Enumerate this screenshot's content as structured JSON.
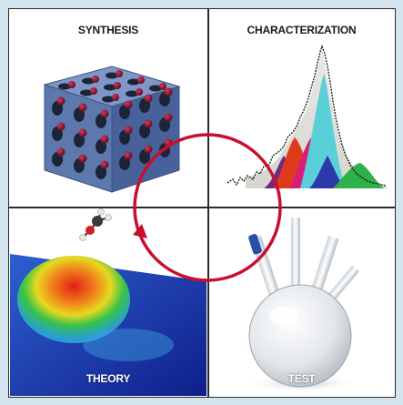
{
  "quadrants": {
    "synthesis": {
      "label": "SYNTHESIS",
      "icon": "porous-framework-crystal-icon"
    },
    "characterization": {
      "label": "CHARACTERIZATION",
      "icon": "spectrum-peak-fit-icon"
    },
    "theory": {
      "label": "THEORY",
      "icon": "energy-surface-molecule-icon"
    },
    "test": {
      "label": "TEST",
      "icon": "reaction-flask-icon"
    }
  },
  "cycle": {
    "color": "#c8102e",
    "direction": "clockwise"
  },
  "colors": {
    "border": "#2b2b2b",
    "background": "#d3e4ee",
    "framework_blue": "#6b86b8",
    "framework_red": "#8a1430"
  }
}
